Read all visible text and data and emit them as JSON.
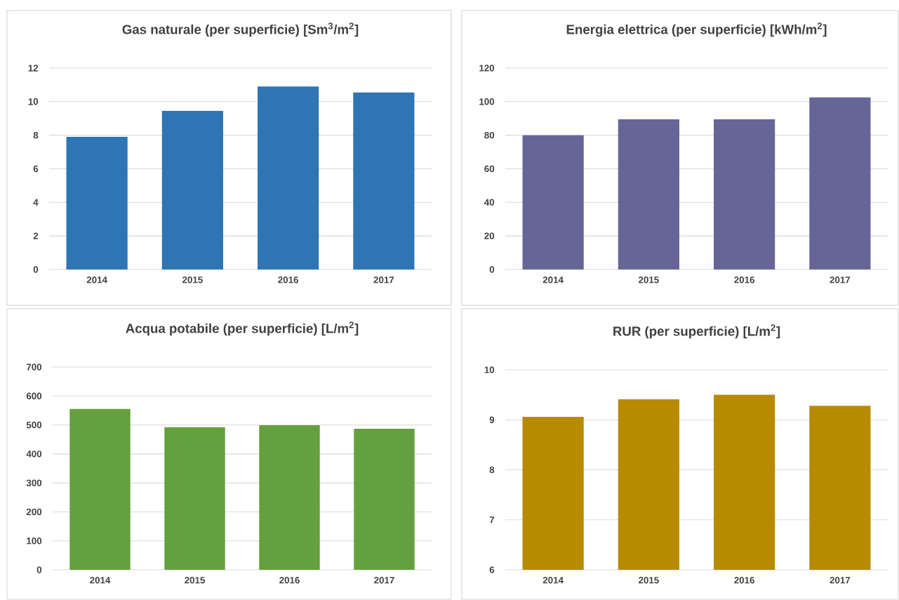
{
  "chart_data": [
    {
      "type": "bar",
      "title": "Gas naturale (per superficie) [Sm$^{3}$/m$^{2}$]",
      "categories": [
        "2014",
        "2015",
        "2016",
        "2017"
      ],
      "values": [
        7.9,
        9.45,
        10.9,
        10.55
      ],
      "color": "#2e75b6",
      "ylim": [
        0,
        12
      ],
      "yticks": [
        0,
        2,
        4,
        6,
        8,
        10,
        12
      ],
      "grid": "y"
    },
    {
      "type": "bar",
      "title": "Energia elettrica (per superficie) [kWh/m$^{2}$]",
      "categories": [
        "2014",
        "2015",
        "2016",
        "2017"
      ],
      "values": [
        80,
        89.5,
        89.5,
        102.5
      ],
      "color": "#656597",
      "ylim": [
        0,
        120
      ],
      "yticks": [
        0,
        20,
        40,
        60,
        80,
        100,
        120
      ],
      "grid": "y"
    },
    {
      "type": "bar",
      "title": "Acqua potabile (per superficie) [L/m$^{2}$]",
      "categories": [
        "2014",
        "2015",
        "2016",
        "2017"
      ],
      "values": [
        555,
        492,
        499,
        487
      ],
      "color": "#64a03d",
      "ylim": [
        0,
        700
      ],
      "yticks": [
        0,
        100,
        200,
        300,
        400,
        500,
        600,
        700
      ],
      "grid": "y"
    },
    {
      "type": "bar",
      "title": "RUR (per superficie) [L/m$^{2}$]",
      "categories": [
        "2014",
        "2015",
        "2016",
        "2017"
      ],
      "values": [
        9.06,
        9.41,
        9.5,
        9.28
      ],
      "color": "#b88a00",
      "ylim": [
        6,
        10
      ],
      "yticks": [
        6,
        7,
        8,
        9,
        10
      ],
      "grid": "y"
    }
  ]
}
